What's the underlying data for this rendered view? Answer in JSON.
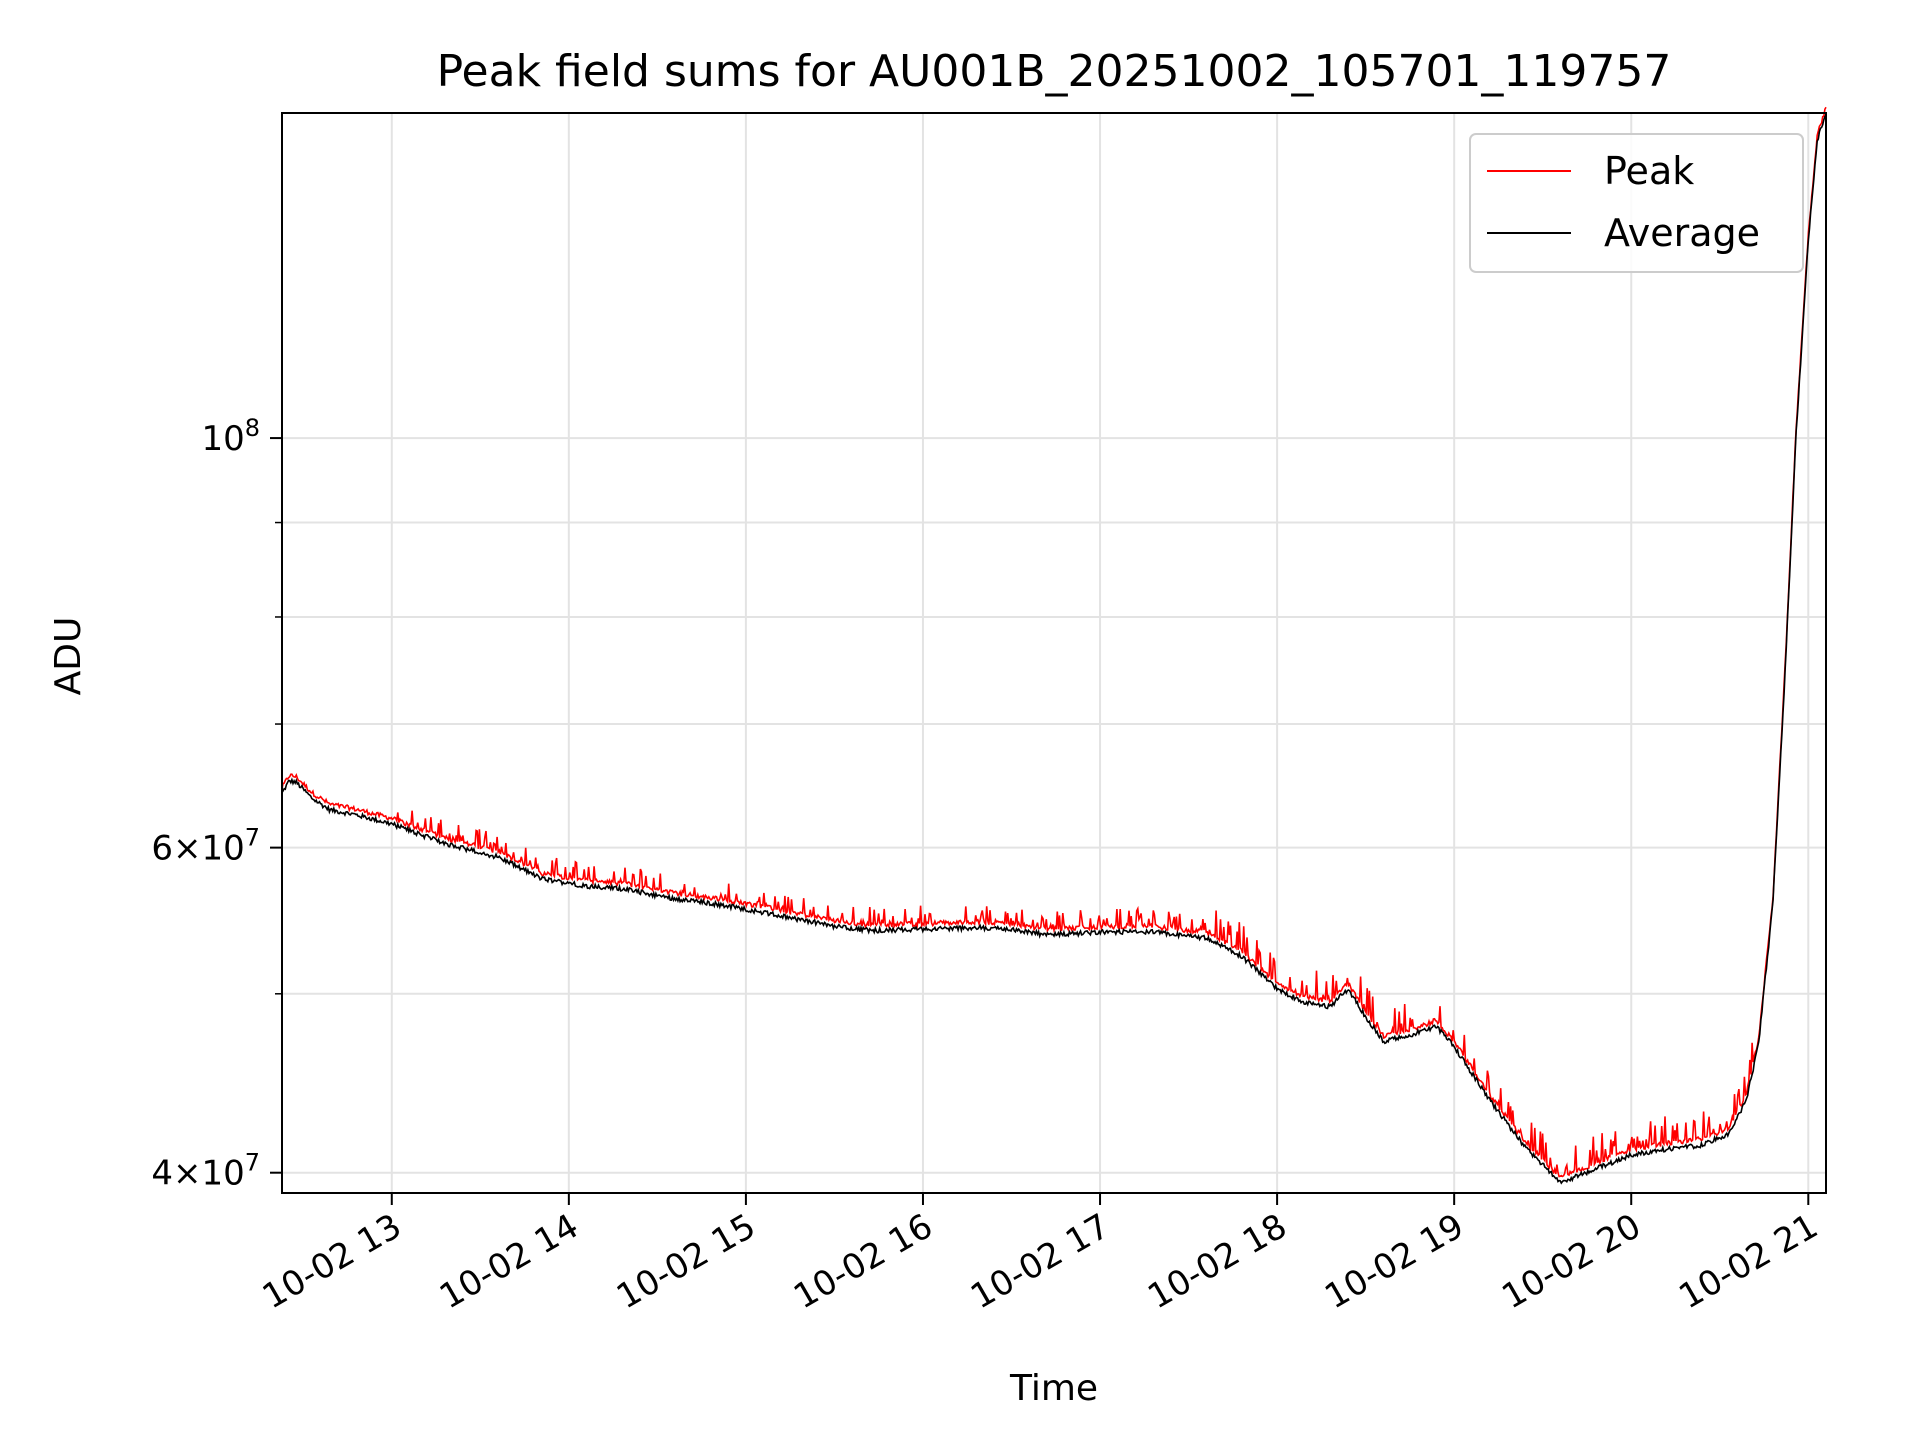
{
  "chart_data": {
    "type": "line",
    "title": "Peak field sums for AU001B_20251002_105701_119757",
    "xlabel": "Time",
    "ylabel": "ADU",
    "y_scale": "log",
    "xlim_hours": [
      12.38,
      21.1
    ],
    "ylim": [
      39000000,
      150000000
    ],
    "grid": true,
    "legend_position": "top-right",
    "x_ticks": [
      {
        "value": 13,
        "label": "10-02 13"
      },
      {
        "value": 14,
        "label": "10-02 14"
      },
      {
        "value": 15,
        "label": "10-02 15"
      },
      {
        "value": 16,
        "label": "10-02 16"
      },
      {
        "value": 17,
        "label": "10-02 17"
      },
      {
        "value": 18,
        "label": "10-02 18"
      },
      {
        "value": 19,
        "label": "10-02 19"
      },
      {
        "value": 20,
        "label": "10-02 20"
      },
      {
        "value": 21,
        "label": "10-02 21"
      }
    ],
    "y_ticks_major": [
      {
        "value": 40000000,
        "mantissa": "4",
        "exponent": "7"
      },
      {
        "value": 60000000,
        "mantissa": "6",
        "exponent": "7"
      },
      {
        "value": 100000000,
        "mantissa": "",
        "exponent": "8"
      }
    ],
    "y_ticks_minor": [
      50000000,
      70000000,
      80000000,
      90000000
    ],
    "series": [
      {
        "name": "Peak",
        "color": "#ff0000"
      },
      {
        "name": "Average",
        "color": "#000000"
      }
    ],
    "average_curve": [
      [
        12.38,
        64200000
      ],
      [
        12.42,
        65200000
      ],
      [
        12.46,
        65100000
      ],
      [
        12.55,
        63800000
      ],
      [
        12.65,
        62900000
      ],
      [
        12.8,
        62500000
      ],
      [
        13.0,
        61800000
      ],
      [
        13.3,
        60300000
      ],
      [
        13.6,
        59300000
      ],
      [
        13.85,
        57700000
      ],
      [
        14.1,
        57200000
      ],
      [
        14.3,
        57000000
      ],
      [
        14.6,
        56300000
      ],
      [
        14.9,
        55800000
      ],
      [
        15.2,
        55100000
      ],
      [
        15.5,
        54400000
      ],
      [
        15.7,
        54100000
      ],
      [
        16.0,
        54200000
      ],
      [
        16.3,
        54300000
      ],
      [
        16.5,
        54200000
      ],
      [
        16.7,
        53800000
      ],
      [
        17.0,
        54000000
      ],
      [
        17.3,
        54000000
      ],
      [
        17.6,
        53600000
      ],
      [
        17.8,
        52400000
      ],
      [
        18.0,
        50300000
      ],
      [
        18.15,
        49500000
      ],
      [
        18.3,
        49200000
      ],
      [
        18.4,
        50300000
      ],
      [
        18.5,
        48600000
      ],
      [
        18.6,
        47100000
      ],
      [
        18.75,
        47500000
      ],
      [
        18.9,
        48000000
      ],
      [
        19.0,
        46800000
      ],
      [
        19.2,
        43800000
      ],
      [
        19.4,
        41300000
      ],
      [
        19.6,
        39500000
      ],
      [
        19.8,
        40200000
      ],
      [
        20.0,
        40900000
      ],
      [
        20.2,
        41200000
      ],
      [
        20.4,
        41400000
      ],
      [
        20.55,
        42000000
      ],
      [
        20.65,
        43800000
      ],
      [
        20.72,
        47000000
      ],
      [
        20.8,
        56000000
      ],
      [
        20.87,
        75000000
      ],
      [
        20.93,
        100000000
      ],
      [
        21.0,
        128000000
      ],
      [
        21.05,
        145000000
      ],
      [
        21.1,
        150000000
      ]
    ]
  }
}
